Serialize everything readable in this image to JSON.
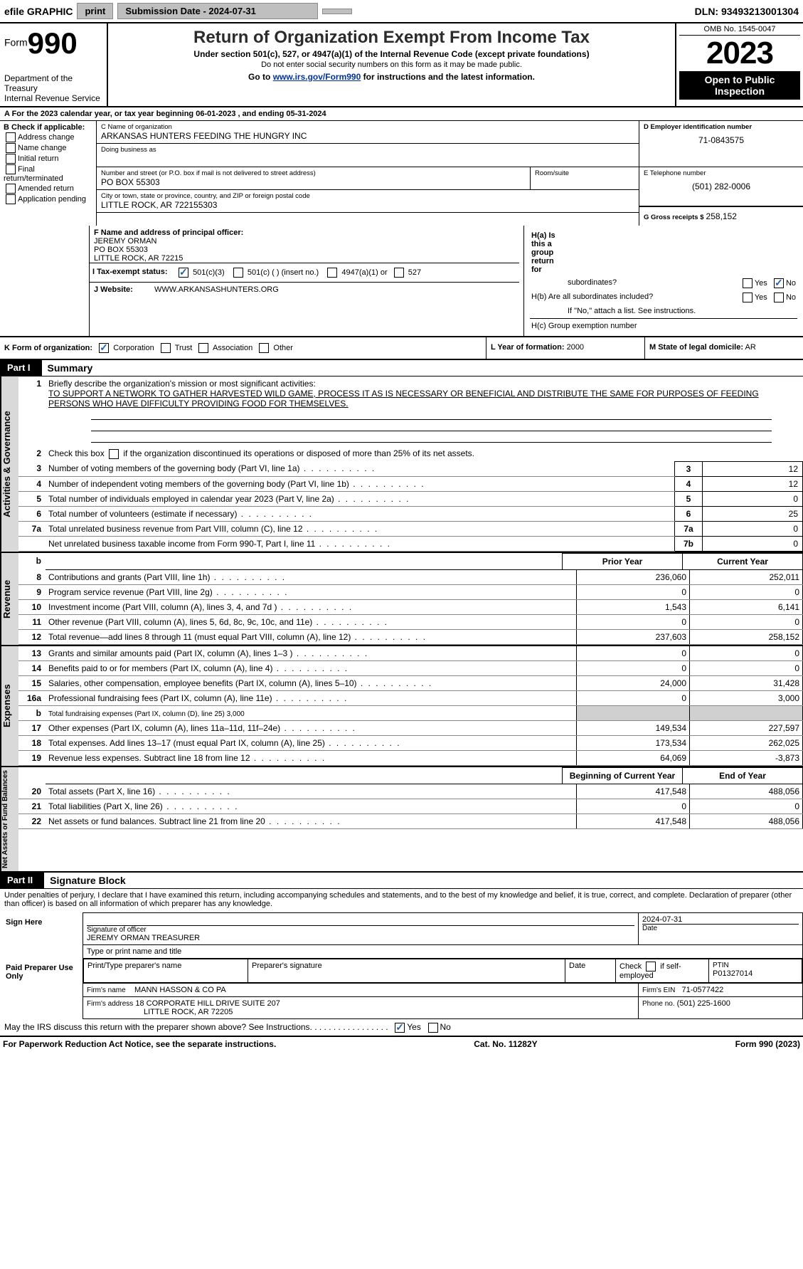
{
  "topbar": {
    "efile_label": "efile GRAPHIC",
    "print_btn": "print",
    "submission_label": "Submission Date - 2024-07-31",
    "dln": "DLN: 93493213001304"
  },
  "header": {
    "form_word": "Form",
    "form_num": "990",
    "dept": "Department of the Treasury\nInternal Revenue Service",
    "title": "Return of Organization Exempt From Income Tax",
    "subtitle": "Under section 501(c), 527, or 4947(a)(1) of the Internal Revenue Code (except private foundations)",
    "note1": "Do not enter social security numbers on this form as it may be made public.",
    "note2_prefix": "Go to ",
    "note2_link": "www.irs.gov/Form990",
    "note2_suffix": " for instructions and the latest information.",
    "omb": "OMB No. 1545-0047",
    "year": "2023",
    "open": "Open to Public Inspection"
  },
  "periodA": {
    "line_prefix": "A For the 2023 calendar year, or tax year beginning ",
    "begin": "06-01-2023",
    "mid": " , and ending ",
    "end": "05-31-2024"
  },
  "boxB": {
    "hdr": "B Check if applicable:",
    "items": [
      "Address change",
      "Name change",
      "Initial return",
      "Final return/terminated",
      "Amended return",
      "Application pending"
    ]
  },
  "boxC": {
    "name_lbl": "C Name of organization",
    "name_val": "ARKANSAS HUNTERS FEEDING THE HUNGRY INC",
    "dba_lbl": "Doing business as",
    "street_lbl": "Number and street (or P.O. box if mail is not delivered to street address)",
    "street_val": "PO BOX 55303",
    "room_lbl": "Room/suite",
    "city_lbl": "City or town, state or province, country, and ZIP or foreign postal code",
    "city_val": "LITTLE ROCK, AR   722155303"
  },
  "boxD": {
    "lbl": "D Employer identification number",
    "val": "71-0843575"
  },
  "boxE": {
    "lbl": "E Telephone number",
    "val": "(501) 282-0006"
  },
  "boxG": {
    "lbl": "G Gross receipts $",
    "val": "258,152"
  },
  "boxF": {
    "lbl": "F  Name and address of principal officer:",
    "name": "JEREMY ORMAN",
    "addr1": "PO BOX 55303",
    "addr2": "LITTLE ROCK, AR  72215"
  },
  "boxH": {
    "ha_lbl": "H(a)  Is this a group return for",
    "ha_lbl2": "subordinates?",
    "hb_lbl": "H(b)  Are all subordinates included?",
    "hb_note": "If \"No,\" attach a list. See instructions.",
    "hc_lbl": "H(c)  Group exemption number",
    "yes": "Yes",
    "no": "No"
  },
  "status": {
    "lbl": "I   Tax-exempt status:",
    "opt1": "501(c)(3)",
    "opt2": "501(c) (  ) (insert no.)",
    "opt3": "4947(a)(1) or",
    "opt4": "527"
  },
  "website": {
    "lbl": "J   Website:",
    "val": "WWW.ARKANSASHUNTERS.ORG"
  },
  "formorg": {
    "k_lbl": "K Form of organization:",
    "k_opts": [
      "Corporation",
      "Trust",
      "Association",
      "Other"
    ],
    "l_lbl": "L Year of formation:",
    "l_val": "2000",
    "m_lbl": "M State of legal domicile:",
    "m_val": "AR"
  },
  "part1": {
    "hdr": "Part I",
    "title": "Summary"
  },
  "summary": {
    "s1": "Briefly describe the organization's mission or most significant activities:",
    "mission": "TO SUPPORT A NETWORK TO GATHER HARVESTED WILD GAME, PROCESS IT AS IS NECESSARY OR BENEFICIAL AND DISTRIBUTE THE SAME FOR PURPOSES OF FEEDING PERSONS WHO HAVE DIFFICULTY PROVIDING FOOD FOR THEMSELVES.",
    "s2": "Check this box         if the organization discontinued its operations or disposed of more than 25% of its net assets.",
    "lines_gov": [
      {
        "n": "3",
        "t": "Number of voting members of the governing body (Part VI, line 1a)",
        "box": "3",
        "v": "12"
      },
      {
        "n": "4",
        "t": "Number of independent voting members of the governing body (Part VI, line 1b)",
        "box": "4",
        "v": "12"
      },
      {
        "n": "5",
        "t": "Total number of individuals employed in calendar year 2023 (Part V, line 2a)",
        "box": "5",
        "v": "0"
      },
      {
        "n": "6",
        "t": "Total number of volunteers (estimate if necessary)",
        "box": "6",
        "v": "25"
      },
      {
        "n": "7a",
        "t": "Total unrelated business revenue from Part VIII, column (C), line 12",
        "box": "7a",
        "v": "0"
      },
      {
        "n": "",
        "t": "Net unrelated business taxable income from Form 990-T, Part I, line 11",
        "box": "7b",
        "v": "0"
      }
    ],
    "prior_hdr": "Prior Year",
    "curr_hdr": "Current Year",
    "lines_rev": [
      {
        "n": "8",
        "t": "Contributions and grants (Part VIII, line 1h)",
        "p": "236,060",
        "c": "252,011"
      },
      {
        "n": "9",
        "t": "Program service revenue (Part VIII, line 2g)",
        "p": "0",
        "c": "0"
      },
      {
        "n": "10",
        "t": "Investment income (Part VIII, column (A), lines 3, 4, and 7d )",
        "p": "1,543",
        "c": "6,141"
      },
      {
        "n": "11",
        "t": "Other revenue (Part VIII, column (A), lines 5, 6d, 8c, 9c, 10c, and 11e)",
        "p": "0",
        "c": "0"
      },
      {
        "n": "12",
        "t": "Total revenue—add lines 8 through 11 (must equal Part VIII, column (A), line 12)",
        "p": "237,603",
        "c": "258,152"
      }
    ],
    "lines_exp": [
      {
        "n": "13",
        "t": "Grants and similar amounts paid (Part IX, column (A), lines 1–3 )",
        "p": "0",
        "c": "0"
      },
      {
        "n": "14",
        "t": "Benefits paid to or for members (Part IX, column (A), line 4)",
        "p": "0",
        "c": "0"
      },
      {
        "n": "15",
        "t": "Salaries, other compensation, employee benefits (Part IX, column (A), lines 5–10)",
        "p": "24,000",
        "c": "31,428"
      },
      {
        "n": "16a",
        "t": "Professional fundraising fees (Part IX, column (A), line 11e)",
        "p": "0",
        "c": "3,000"
      }
    ],
    "line_b": {
      "n": "b",
      "t": "Total fundraising expenses (Part IX, column (D), line 25) 3,000"
    },
    "lines_exp2": [
      {
        "n": "17",
        "t": "Other expenses (Part IX, column (A), lines 11a–11d, 11f–24e)",
        "p": "149,534",
        "c": "227,597"
      },
      {
        "n": "18",
        "t": "Total expenses. Add lines 13–17 (must equal Part IX, column (A), line 25)",
        "p": "173,534",
        "c": "262,025"
      },
      {
        "n": "19",
        "t": "Revenue less expenses. Subtract line 18 from line 12",
        "p": "64,069",
        "c": "-3,873"
      }
    ],
    "na_hdr1": "Beginning of Current Year",
    "na_hdr2": "End of Year",
    "lines_na": [
      {
        "n": "20",
        "t": "Total assets (Part X, line 16)",
        "p": "417,548",
        "c": "488,056"
      },
      {
        "n": "21",
        "t": "Total liabilities (Part X, line 26)",
        "p": "0",
        "c": "0"
      },
      {
        "n": "22",
        "t": "Net assets or fund balances. Subtract line 21 from line 20",
        "p": "417,548",
        "c": "488,056"
      }
    ]
  },
  "vlabels": {
    "gov": "Activities & Governance",
    "rev": "Revenue",
    "exp": "Expenses",
    "na": "Net Assets or Fund Balances"
  },
  "part2": {
    "hdr": "Part II",
    "title": "Signature Block",
    "decl": "Under penalties of perjury, I declare that I have examined this return, including accompanying schedules and statements, and to the best of my knowledge and belief, it is true, correct, and complete. Declaration of preparer (other than officer) is based on all information of which preparer has any knowledge."
  },
  "sign": {
    "here": "Sign Here",
    "sig_lbl": "Signature of officer",
    "name": "JEREMY ORMAN  TREASURER",
    "type_lbl": "Type or print name and title",
    "date_lbl": "Date",
    "date": "2024-07-31"
  },
  "paid": {
    "hdr": "Paid Preparer Use Only",
    "pt_lbl": "Print/Type preparer's name",
    "sig_lbl": "Preparer's signature",
    "date_lbl": "Date",
    "check_lbl": "Check          if self-employed",
    "ptin_lbl": "PTIN",
    "ptin": "P01327014",
    "firm_name_lbl": "Firm's name",
    "firm_name": "MANN HASSON & CO PA",
    "firm_ein_lbl": "Firm's EIN",
    "firm_ein": "71-0577422",
    "firm_addr_lbl": "Firm's address",
    "firm_addr1": "18 CORPORATE HILL DRIVE SUITE 207",
    "firm_addr2": "LITTLE ROCK, AR  72205",
    "phone_lbl": "Phone no.",
    "phone": "(501) 225-1600"
  },
  "mayirs": {
    "text": "May the IRS discuss this return with the preparer shown above? See Instructions.   .    .    .    .    .    .    .    .    .    .    .    .    .    .    .    .",
    "yes": "Yes",
    "no": "No"
  },
  "footer": {
    "left": "For Paperwork Reduction Act Notice, see the separate instructions.",
    "mid": "Cat. No. 11282Y",
    "right": "Form 990 (2023)"
  }
}
